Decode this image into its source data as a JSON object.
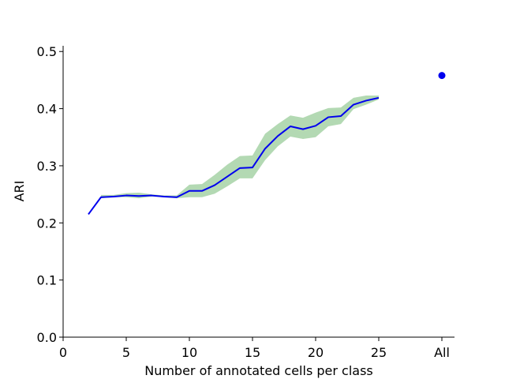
{
  "chart_data": {
    "type": "line",
    "xlabel": "Number of annotated cells per class",
    "ylabel": "ARI",
    "xlim": [
      0,
      31
    ],
    "ylim": [
      0,
      0.51
    ],
    "x_ticks": [
      {
        "value": 0,
        "label": "0"
      },
      {
        "value": 5,
        "label": "5"
      },
      {
        "value": 10,
        "label": "10"
      },
      {
        "value": 15,
        "label": "15"
      },
      {
        "value": 20,
        "label": "20"
      },
      {
        "value": 25,
        "label": "25"
      },
      {
        "value": 30,
        "label": "All"
      }
    ],
    "y_ticks": [
      {
        "value": 0.0,
        "label": "0.0"
      },
      {
        "value": 0.1,
        "label": "0.1"
      },
      {
        "value": 0.2,
        "label": "0.2"
      },
      {
        "value": 0.3,
        "label": "0.3"
      },
      {
        "value": 0.4,
        "label": "0.4"
      },
      {
        "value": 0.5,
        "label": "0.5"
      }
    ],
    "series": [
      {
        "type": "line",
        "color": "#0000ee",
        "x": [
          2,
          3,
          4,
          5,
          6,
          7,
          8,
          9,
          10,
          11,
          12,
          13,
          14,
          15,
          16,
          17,
          18,
          19,
          20,
          21,
          22,
          23,
          24,
          25
        ],
        "y": [
          0.215,
          0.245,
          0.246,
          0.248,
          0.247,
          0.248,
          0.246,
          0.245,
          0.256,
          0.256,
          0.266,
          0.281,
          0.296,
          0.297,
          0.33,
          0.352,
          0.369,
          0.364,
          0.37,
          0.385,
          0.387,
          0.407,
          0.414,
          0.419
        ]
      },
      {
        "type": "band",
        "color": "#b3d9b3",
        "x": [
          3,
          4,
          5,
          6,
          7,
          8,
          9,
          10,
          11,
          12,
          13,
          14,
          15,
          16,
          17,
          18,
          19,
          20,
          21,
          22,
          23,
          24,
          25
        ],
        "lower": [
          0.243,
          0.245,
          0.245,
          0.243,
          0.246,
          0.245,
          0.243,
          0.245,
          0.245,
          0.251,
          0.264,
          0.278,
          0.278,
          0.31,
          0.334,
          0.351,
          0.347,
          0.35,
          0.369,
          0.373,
          0.399,
          0.407,
          0.416
        ],
        "upper": [
          0.249,
          0.249,
          0.252,
          0.253,
          0.25,
          0.248,
          0.248,
          0.267,
          0.268,
          0.284,
          0.302,
          0.317,
          0.318,
          0.356,
          0.373,
          0.388,
          0.384,
          0.393,
          0.401,
          0.402,
          0.419,
          0.423,
          0.423
        ]
      },
      {
        "type": "point",
        "color": "#0000ee",
        "x": [
          30
        ],
        "y": [
          0.458
        ]
      }
    ]
  }
}
